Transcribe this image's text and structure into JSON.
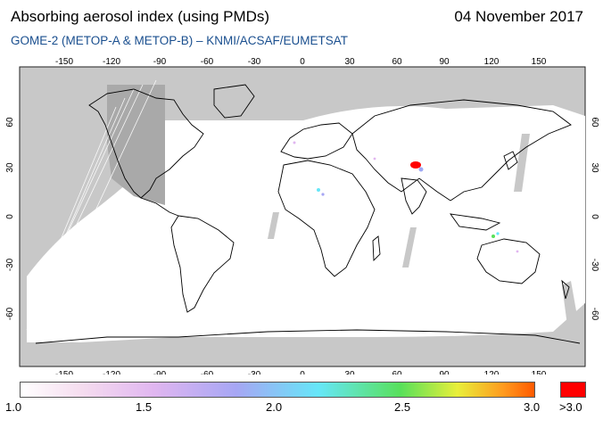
{
  "header": {
    "title": "Absorbing aerosol index (using PMDs)",
    "date": "04 November 2017",
    "subtitle": "GOME-2 (METOP-A & METOP-B)  –  KNMI/ACSAF/EUMETSAT"
  },
  "map": {
    "lon_ticks": [
      "-150",
      "-120",
      "-90",
      "-60",
      "-30",
      "0",
      "30",
      "60",
      "90",
      "120",
      "150"
    ],
    "lat_ticks": [
      "60",
      "30",
      "0",
      "-30",
      "-60"
    ],
    "colors": {
      "no_data": "#c8c8c8",
      "ocean": "#ffffff",
      "coastline": "#000000",
      "night_band": "#a9a9a9",
      "hotspot": "#ff0000"
    }
  },
  "colorbar": {
    "ticks": [
      "1.0",
      "1.5",
      "2.0",
      "2.5",
      "3.0"
    ],
    "overflow_label": ">3.0",
    "overflow_color": "#ff0000"
  }
}
